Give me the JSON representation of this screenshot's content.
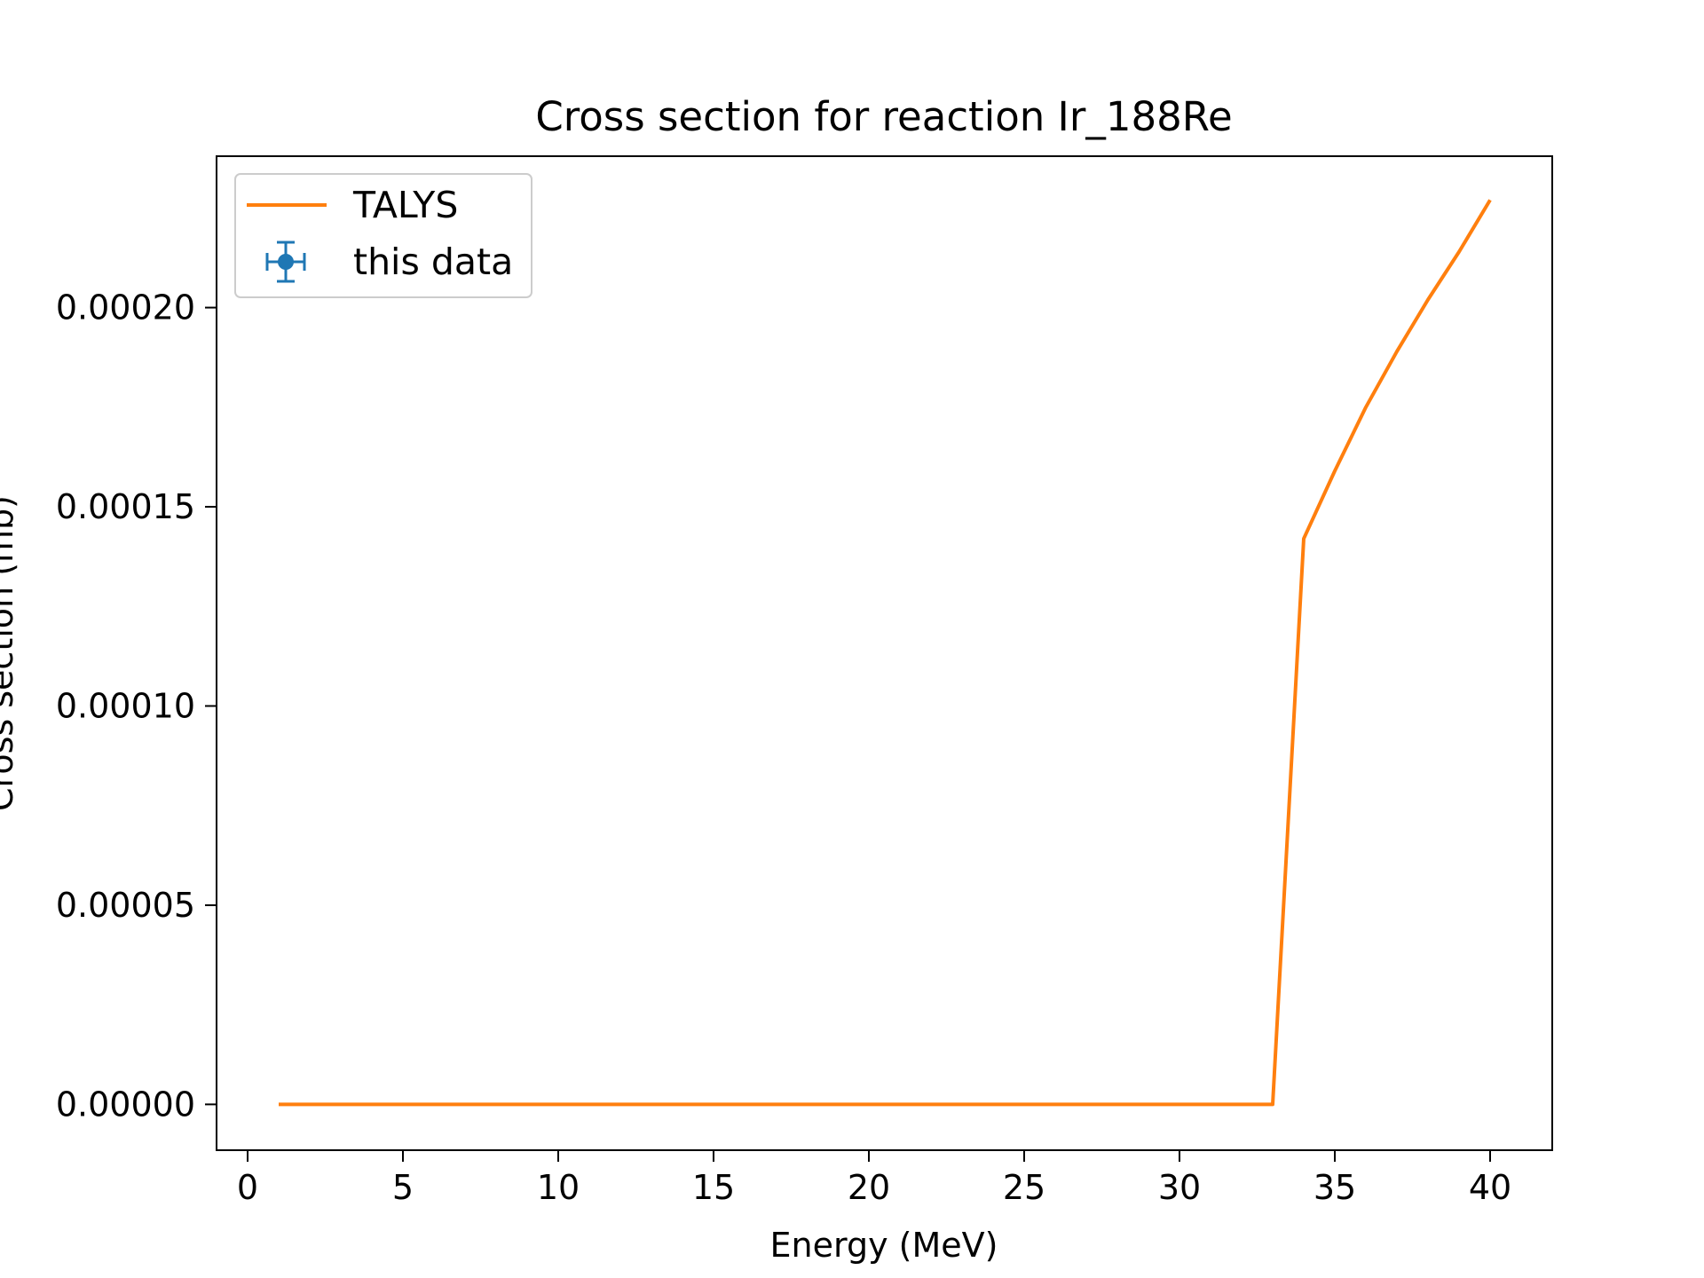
{
  "chart_data": {
    "type": "line",
    "title": "Cross section for reaction Ir_188Re",
    "xlabel": "Energy (MeV)",
    "ylabel": "Cross section (mb)",
    "xlim": [
      -1,
      42
    ],
    "ylim": [
      -1.15e-05,
      0.000238
    ],
    "xticks": [
      0,
      5,
      10,
      15,
      20,
      25,
      30,
      35,
      40
    ],
    "xtick_labels": [
      "0",
      "5",
      "10",
      "15",
      "20",
      "25",
      "30",
      "35",
      "40"
    ],
    "yticks": [
      0,
      5e-05,
      0.0001,
      0.00015,
      0.0002
    ],
    "ytick_labels": [
      "0.00000",
      "0.00005",
      "0.00010",
      "0.00015",
      "0.00020"
    ],
    "grid": false,
    "legend_position": "top-left",
    "series": [
      {
        "name": "TALYS",
        "color": "#ff7f0e",
        "kind": "line",
        "x": [
          1,
          2,
          3,
          4,
          5,
          6,
          7,
          8,
          9,
          10,
          11,
          12,
          13,
          14,
          15,
          16,
          17,
          18,
          19,
          20,
          21,
          22,
          23,
          24,
          25,
          26,
          27,
          28,
          29,
          30,
          31,
          32,
          33,
          34,
          35,
          36,
          37,
          38,
          39,
          40
        ],
        "y": [
          0,
          0,
          0,
          0,
          0,
          0,
          0,
          0,
          0,
          0,
          0,
          0,
          0,
          0,
          0,
          0,
          0,
          0,
          0,
          0,
          0,
          0,
          0,
          0,
          0,
          0,
          0,
          0,
          0,
          0,
          0,
          0,
          0,
          0.000142,
          0.000159,
          0.000175,
          0.000189,
          0.000202,
          0.000214,
          0.000227
        ]
      },
      {
        "name": "this data",
        "color": "#1f77b4",
        "kind": "errorbar",
        "x": [],
        "y": []
      }
    ]
  }
}
